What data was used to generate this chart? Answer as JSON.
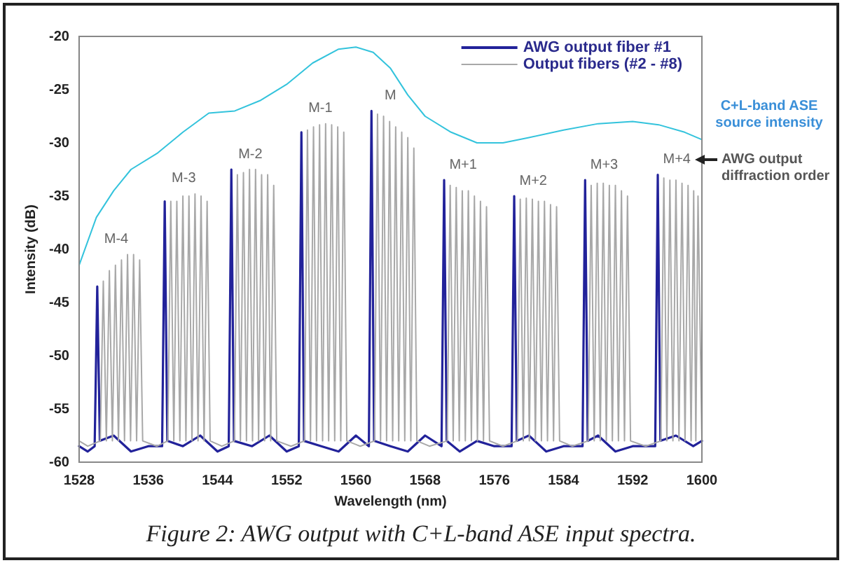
{
  "chart_data": {
    "type": "line",
    "xlabel": "Wavelength (nm)",
    "ylabel": "Intensity (dB)",
    "xlim": [
      1528,
      1600
    ],
    "xticks": [
      1528,
      1536,
      1544,
      1552,
      1560,
      1568,
      1576,
      1584,
      1592,
      1600
    ],
    "ylim": [
      -60,
      -20
    ],
    "yticks": [
      -60,
      -55,
      -50,
      -45,
      -40,
      -35,
      -30,
      -25,
      -20
    ],
    "grid": false,
    "legend": "top right",
    "marker": "none",
    "line_style": "solid",
    "series": [
      {
        "name": "Output fibers (#2 - #8)",
        "color": "#a8a8a8",
        "x": [
          1528,
          1529,
          1530.45,
          1530.8,
          1531.15,
          1531.5,
          1531.85,
          1532.2,
          1532.55,
          1532.9,
          1533.25,
          1533.6,
          1533.95,
          1534.3,
          1534.65,
          1535.0,
          1535.35,
          1537,
          1538.25,
          1538.6,
          1538.95,
          1539.3,
          1539.65,
          1540.0,
          1540.35,
          1540.7,
          1541.05,
          1541.4,
          1541.75,
          1542.1,
          1542.45,
          1542.8,
          1543.15,
          1544.5,
          1545.95,
          1546.3,
          1546.65,
          1547.0,
          1547.35,
          1547.7,
          1548.05,
          1548.4,
          1548.75,
          1549.1,
          1549.45,
          1549.8,
          1550.15,
          1550.5,
          1550.85,
          1552.5,
          1554.05,
          1554.4,
          1554.75,
          1555.1,
          1555.45,
          1555.8,
          1556.15,
          1556.5,
          1556.85,
          1557.2,
          1557.55,
          1557.9,
          1558.25,
          1558.6,
          1558.95,
          1560.5,
          1562.15,
          1562.5,
          1562.85,
          1563.2,
          1563.55,
          1563.9,
          1564.25,
          1564.6,
          1564.95,
          1565.3,
          1565.65,
          1566.0,
          1566.35,
          1566.7,
          1567.05,
          1568.5,
          1570.55,
          1570.9,
          1571.25,
          1571.6,
          1571.95,
          1572.3,
          1572.65,
          1573.0,
          1573.35,
          1573.7,
          1574.05,
          1574.4,
          1574.75,
          1575.1,
          1575.45,
          1577,
          1578.65,
          1579.0,
          1579.35,
          1579.7,
          1580.05,
          1580.4,
          1580.75,
          1581.1,
          1581.45,
          1581.8,
          1582.15,
          1582.5,
          1582.85,
          1583.2,
          1583.55,
          1585,
          1586.85,
          1587.2,
          1587.55,
          1587.9,
          1588.25,
          1588.6,
          1588.95,
          1589.3,
          1589.65,
          1590.0,
          1590.35,
          1590.7,
          1591.05,
          1591.4,
          1591.75,
          1593.5,
          1595.25,
          1595.6,
          1595.95,
          1596.3,
          1596.65,
          1597.0,
          1597.35,
          1597.7,
          1598.05,
          1598.4,
          1598.75,
          1599.05,
          1599.3,
          1599.55,
          1600
        ],
        "values": [
          -58,
          -58.5,
          -58,
          -43,
          -58,
          -42,
          -58,
          -41.5,
          -58,
          -41,
          -58,
          -40.5,
          -58,
          -40.5,
          -58,
          -41,
          -58,
          -58.5,
          -58,
          -35.5,
          -58,
          -35.5,
          -58,
          -35,
          -58,
          -35,
          -58,
          -34.8,
          -58,
          -35,
          -58,
          -35.5,
          -58,
          -58.5,
          -58,
          -33,
          -58,
          -32.8,
          -58,
          -32.5,
          -58,
          -32.5,
          -58,
          -33,
          -58,
          -33,
          -58,
          -34,
          -58,
          -58.5,
          -58,
          -28.8,
          -58,
          -28.5,
          -58,
          -28.3,
          -58,
          -28.2,
          -58,
          -28.3,
          -58,
          -28.5,
          -58,
          -29,
          -58,
          -58.5,
          -58,
          -27.3,
          -58,
          -27.5,
          -58,
          -28,
          -58,
          -28.5,
          -58,
          -29,
          -58,
          -29.5,
          -58,
          -30.5,
          -58,
          -58.5,
          -58,
          -34,
          -58,
          -34.2,
          -58,
          -34.5,
          -58,
          -34.5,
          -58,
          -35,
          -58,
          -35.5,
          -58,
          -36,
          -58,
          -58.5,
          -58,
          -35.3,
          -58,
          -35.2,
          -58,
          -35.3,
          -58,
          -35.5,
          -58,
          -35.5,
          -58,
          -35.8,
          -58,
          -36,
          -58,
          -58.5,
          -58,
          -34,
          -58,
          -33.8,
          -58,
          -33.8,
          -58,
          -34,
          -58,
          -34,
          -58,
          -34.5,
          -58,
          -35,
          -58,
          -58.5,
          -58,
          -33.3,
          -58,
          -33.5,
          -58,
          -33.5,
          -58,
          -33.8,
          -58,
          -34,
          -58,
          -34.5,
          -58,
          -35,
          -58
        ]
      },
      {
        "name": "AWG output fiber #1",
        "color": "#22229a",
        "x": [
          1528,
          1529,
          1529.8,
          1530.1,
          1530.4,
          1532,
          1534,
          1536,
          1537.6,
          1537.9,
          1538.2,
          1540,
          1542,
          1544,
          1545.3,
          1545.6,
          1545.9,
          1548,
          1550,
          1552,
          1553.4,
          1553.7,
          1554,
          1556,
          1558,
          1560,
          1561.5,
          1561.8,
          1562.1,
          1564,
          1566,
          1568,
          1569.9,
          1570.2,
          1570.5,
          1572,
          1574,
          1576,
          1578,
          1578.3,
          1578.6,
          1580,
          1582,
          1584,
          1586.2,
          1586.5,
          1586.8,
          1588,
          1590,
          1592,
          1594.6,
          1594.9,
          1595.2,
          1597,
          1599,
          1600
        ],
        "values": [
          -58.5,
          -59,
          -58.5,
          -43.5,
          -58,
          -57.5,
          -59,
          -58.5,
          -58.5,
          -35.5,
          -58,
          -58.5,
          -57.5,
          -59,
          -58.5,
          -32.5,
          -58,
          -58.5,
          -57.5,
          -59,
          -58.5,
          -29,
          -58,
          -58.5,
          -59,
          -57.5,
          -58.5,
          -27,
          -58,
          -58.5,
          -59,
          -57.5,
          -58.5,
          -33.5,
          -58,
          -59,
          -58,
          -58.5,
          -58.5,
          -35,
          -58,
          -57.5,
          -59,
          -58.5,
          -58.5,
          -33.5,
          -58,
          -57.5,
          -59,
          -58.5,
          -58.5,
          -33,
          -58,
          -57.5,
          -58.5,
          -58
        ]
      },
      {
        "color": "#33c3dc",
        "x": [
          1528,
          1530,
          1532,
          1534,
          1537,
          1540,
          1543,
          1546,
          1549,
          1552,
          1555,
          1558,
          1560,
          1562,
          1564,
          1566,
          1568,
          1571,
          1574,
          1577,
          1580,
          1584,
          1588,
          1592,
          1595,
          1598,
          1600
        ],
        "values": [
          -41.5,
          -37,
          -34.5,
          -32.5,
          -31,
          -29,
          -27.2,
          -27,
          -26,
          -24.5,
          -22.5,
          -21.2,
          -21,
          -21.5,
          -23,
          -25.5,
          -27.5,
          -29,
          -30,
          -30,
          -29.5,
          -28.8,
          -28.2,
          -28,
          -28.3,
          -29,
          -29.7
        ]
      }
    ],
    "annotations": [
      "M-4",
      "M-3",
      "M-2",
      "M-1",
      "M",
      "M+1",
      "M+2",
      "M+3",
      "M+4",
      {
        "text": "C+L-band ASE source intensity",
        "x": 1600,
        "y": -29.7
      },
      "AWG output diffraction order",
      "Figure 2: AWG output with C+L-band ASE input spectra."
    ]
  }
}
